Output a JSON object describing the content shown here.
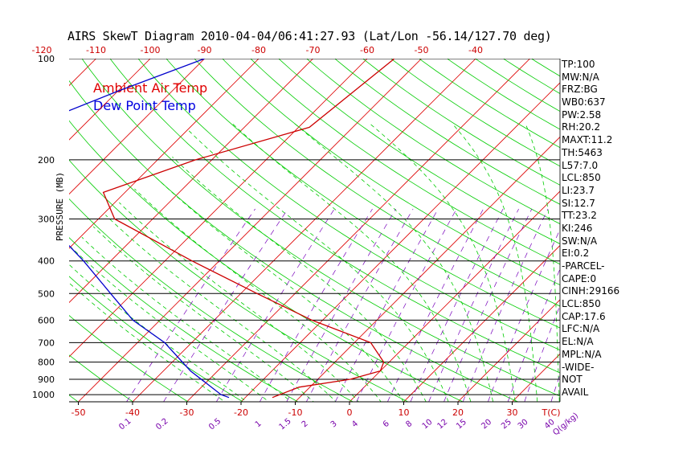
{
  "title": "AIRS SkewT Diagram 2010-04-04/06:41:27.93 (Lat/Lon -56.14/127.70 deg)",
  "colors": {
    "temp": "#cc0000",
    "dew": "#0000cc",
    "isotherm": "#dd0000",
    "dry_adiabat": "#00cc00",
    "moist_adiabat": "#00cc00",
    "mixing_ratio": "#7700bb",
    "isobar": "#000000",
    "top_labels": "#cc0000",
    "bottom_labels": "#cc0000",
    "mixing_labels": "#7700aa"
  },
  "stats": [
    "TP:100",
    "MW:N/A",
    "FRZ:BG",
    "WB0:637",
    "PW:2.58",
    "RH:20.2",
    "MAXT:11.2",
    "TH:5463",
    "L57:7.0",
    "LCL:850",
    "LI:23.7",
    "SI:12.7",
    "TT:23.2",
    "KI:246",
    "SW:N/A",
    "EI:0.2",
    "-PARCEL-",
    "CAPE:0",
    "CINH:29166",
    "LCL:850",
    "CAP:17.6",
    "LFC:N/A",
    "EL:N/A",
    "MPL:N/A",
    "-WIDE-",
    "NOT",
    "AVAIL"
  ],
  "chart_data": {
    "type": "line",
    "title": "AIRS SkewT Diagram 2010-04-04/06:41:27.93 (Lat/Lon -56.14/127.70 deg)",
    "ylabel": "PRESSURE (MB)",
    "xlabel": "T(C)",
    "y_scale": "log",
    "ylim": [
      1050,
      100
    ],
    "pressure_ticks": [
      100,
      200,
      300,
      400,
      500,
      600,
      700,
      800,
      900,
      1000
    ],
    "bottom_temp_ticks": [
      -50,
      -40,
      -30,
      -20,
      -10,
      0,
      10,
      20,
      30
    ],
    "top_temp_ticks": [
      -120,
      -110,
      -100,
      -90,
      -80,
      -70,
      -60,
      -50,
      -40
    ],
    "mixing_ratio_labels": [
      "0.1",
      "0.2",
      "0.5",
      "1",
      "1.5",
      "2",
      "3",
      "4",
      "6",
      "8",
      "10",
      "12",
      "15",
      "20",
      "25",
      "30",
      "40",
      "Q(g/kg)"
    ],
    "legend": [
      "Ambient Air Temp",
      "Dew Point Temp"
    ],
    "series": [
      {
        "name": "Ambient Air Temp",
        "points": [
          [
            100,
            -55
          ],
          [
            160,
            -58
          ],
          [
            200,
            -73
          ],
          [
            250,
            -84
          ],
          [
            300,
            -77
          ],
          [
            400,
            -55
          ],
          [
            500,
            -37
          ],
          [
            600,
            -22
          ],
          [
            700,
            -7
          ],
          [
            800,
            -1
          ],
          [
            850,
            0
          ],
          [
            900,
            -4
          ],
          [
            950,
            -12
          ],
          [
            1020,
            -15
          ]
        ]
      },
      {
        "name": "Dew Point Temp",
        "points": [
          [
            100,
            -90
          ],
          [
            125,
            -100
          ],
          [
            160,
            -110
          ],
          [
            200,
            -108
          ],
          [
            250,
            -100
          ],
          [
            300,
            -90
          ],
          [
            350,
            -82
          ],
          [
            400,
            -75
          ],
          [
            500,
            -64
          ],
          [
            600,
            -55
          ],
          [
            700,
            -45
          ],
          [
            850,
            -35
          ],
          [
            1000,
            -25
          ],
          [
            1020,
            -23
          ]
        ]
      }
    ]
  }
}
